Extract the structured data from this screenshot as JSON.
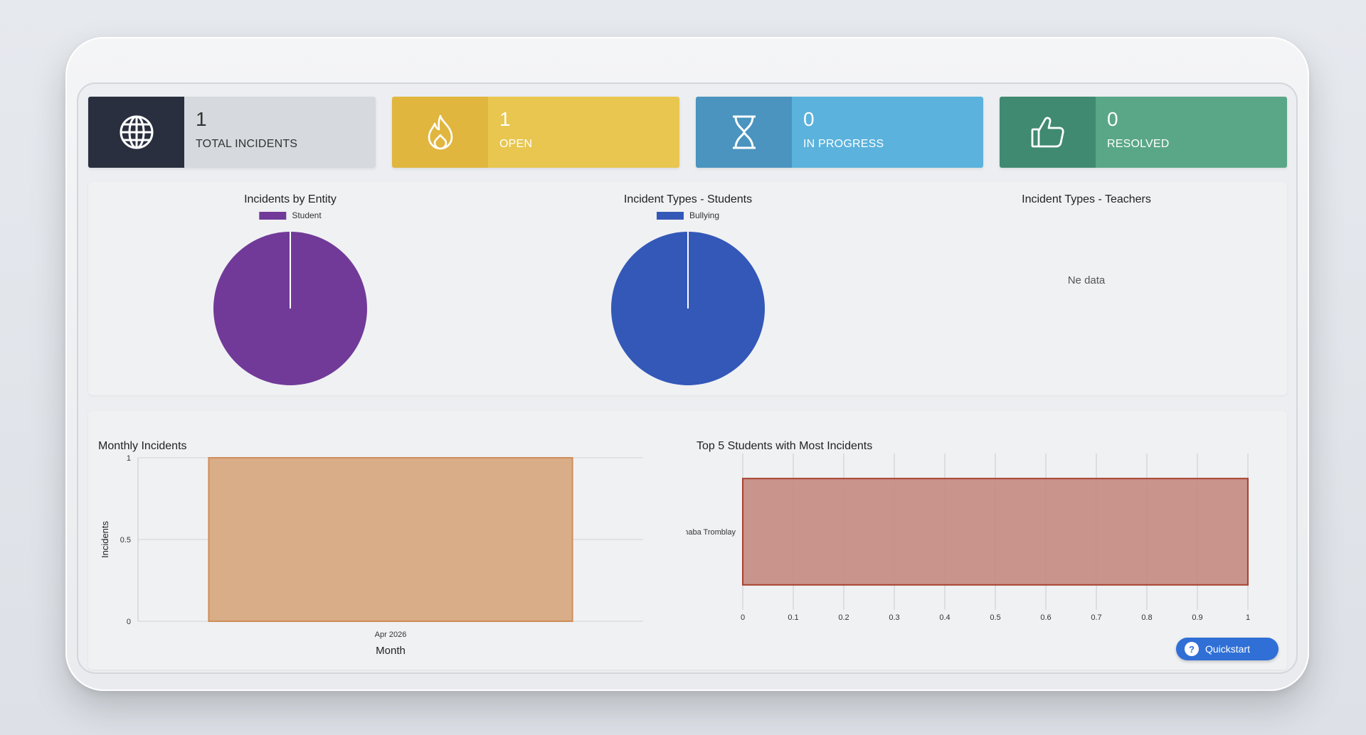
{
  "cards": [
    {
      "value": "1",
      "label": "TOTAL INCIDENTS",
      "icon": "globe-icon"
    },
    {
      "value": "1",
      "label": "OPEN",
      "icon": "flame-icon"
    },
    {
      "value": "0",
      "label": "IN PROGRESS",
      "icon": "hourglass-icon"
    },
    {
      "value": "0",
      "label": "RESOLVED",
      "icon": "thumbs-up-icon"
    }
  ],
  "colors": {
    "total": "#2a2f3f",
    "open": "#e8c64f",
    "in_progress": "#5bb2dc",
    "resolved": "#5aa787",
    "entity_pie": "#713a99",
    "students_pie": "#3358b8",
    "monthly_bar": "#d9ad87",
    "top5_bar": "#c48c82"
  },
  "quickstart": {
    "label": "Quickstart"
  },
  "chart_data": [
    {
      "type": "pie",
      "title": "Incidents by Entity",
      "labels": [
        "Student"
      ],
      "values": [
        1
      ],
      "colors": [
        "#713a99"
      ]
    },
    {
      "type": "pie",
      "title": "Incident Types - Students",
      "labels": [
        "Bullying"
      ],
      "values": [
        1
      ],
      "colors": [
        "#3358b8"
      ]
    },
    {
      "type": "pie",
      "title": "Incident Types - Teachers",
      "labels": [],
      "values": [],
      "empty_text": "Ne data"
    },
    {
      "type": "bar",
      "title": "Monthly Incidents",
      "categories": [
        "Apr 2026"
      ],
      "values": [
        1
      ],
      "xlabel": "Month",
      "ylabel": "Incidents",
      "ylim": [
        0,
        1
      ],
      "yticks": [
        "0",
        "0.5",
        "1"
      ],
      "grid": true
    },
    {
      "type": "bar",
      "orientation": "horizontal",
      "title": "Top 5 Students with Most Incidents",
      "categories": [
        "Shaba Tromblay"
      ],
      "values": [
        1
      ],
      "xlim": [
        0,
        1
      ],
      "xticks": [
        "0",
        "0.1",
        "0.2",
        "0.3",
        "0.4",
        "0.5",
        "0.6",
        "0.7",
        "0.8",
        "0.9",
        "1"
      ],
      "grid": true
    }
  ]
}
